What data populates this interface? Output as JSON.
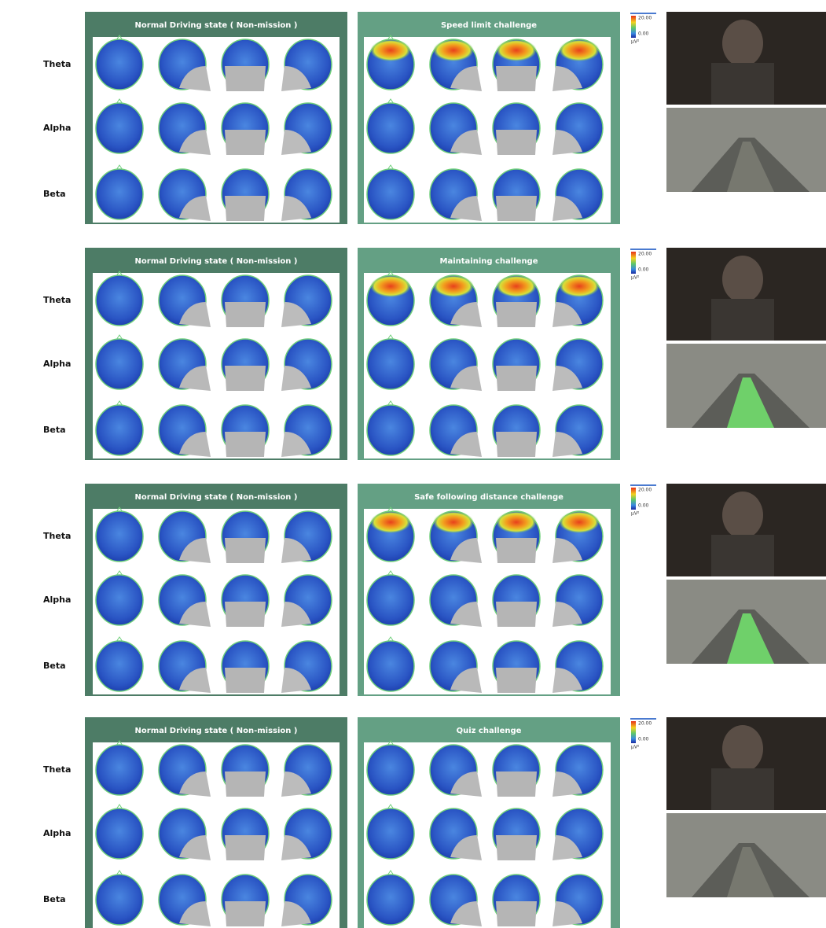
{
  "blocks": [
    {
      "rows": [
        "Theta",
        "Alpha",
        "Beta"
      ],
      "normal_title": "Normal Driving state ( Non-mission )",
      "challenge_title": "Speed limit challenge",
      "colorbar": {
        "max": "20.00",
        "min": "0.00",
        "unit": "μV²"
      }
    },
    {
      "rows": [
        "Theta",
        "Alpha",
        "Beta"
      ],
      "normal_title": "Normal Driving state ( Non-mission )",
      "challenge_title": "Maintaining challenge",
      "colorbar": {
        "max": "20.00",
        "min": "0.00",
        "unit": "μV²"
      }
    },
    {
      "rows": [
        "Theta",
        "Alpha",
        "Beta"
      ],
      "normal_title": "Normal Driving state ( Non-mission )",
      "challenge_title": "Safe following distance challenge",
      "colorbar": {
        "max": "20.00",
        "min": "0.00",
        "unit": "μV²"
      }
    },
    {
      "rows": [
        "Theta",
        "Alpha",
        "Beta"
      ],
      "normal_title": "Normal Driving state ( Non-mission )",
      "challenge_title": "Quiz challenge",
      "colorbar": {
        "max": "20.00",
        "min": "0.00",
        "unit": "μV²"
      }
    }
  ]
}
